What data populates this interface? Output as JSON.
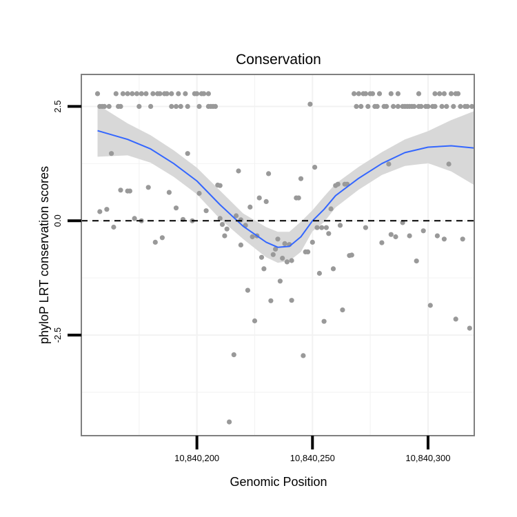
{
  "chart_data": {
    "type": "scatter",
    "title": "Conservation",
    "xlabel": "Genomic Position",
    "ylabel": "phyloP LRT conservation scores",
    "xlim": [
      10840150,
      10840320
    ],
    "ylim": [
      -4.7,
      3.2
    ],
    "x_ticks": [
      {
        "value": 10840200,
        "label": "10,840,200"
      },
      {
        "value": 10840250,
        "label": "10,840,250"
      },
      {
        "value": 10840300,
        "label": "10,840,300"
      }
    ],
    "y_ticks": [
      {
        "value": 2.5,
        "label": "2.5"
      },
      {
        "value": 0.0,
        "label": "0.0"
      },
      {
        "value": -2.5,
        "label": "-2.5"
      }
    ],
    "reference_line": {
      "y": 0,
      "style": "dashed",
      "color": "#000000"
    },
    "grid": true,
    "colors": {
      "points": "#999999",
      "smooth_line": "#3366FF",
      "confidence_band": "#D6D6D6",
      "panel_border": "#7F7F7F",
      "grid": "#F2F2F2"
    },
    "points": [
      [
        10840157,
        2.78
      ],
      [
        10840158,
        0.2
      ],
      [
        10840158,
        2.5
      ],
      [
        10840159,
        2.5
      ],
      [
        10840160,
        2.5
      ],
      [
        10840161,
        0.25
      ],
      [
        10840162,
        2.5
      ],
      [
        10840163,
        1.47
      ],
      [
        10840164,
        -0.14
      ],
      [
        10840165,
        2.78
      ],
      [
        10840166,
        2.5
      ],
      [
        10840167,
        0.67
      ],
      [
        10840167,
        2.5
      ],
      [
        10840168,
        2.78
      ],
      [
        10840170,
        2.78
      ],
      [
        10840170,
        0.65
      ],
      [
        10840171,
        0.65
      ],
      [
        10840172,
        2.78
      ],
      [
        10840173,
        0.05
      ],
      [
        10840174,
        2.78
      ],
      [
        10840175,
        2.5
      ],
      [
        10840176,
        2.78
      ],
      [
        10840176,
        0
      ],
      [
        10840178,
        2.78
      ],
      [
        10840179,
        0.73
      ],
      [
        10840180,
        2.5
      ],
      [
        10840181,
        2.78
      ],
      [
        10840182,
        -0.47
      ],
      [
        10840183,
        2.78
      ],
      [
        10840184,
        2.78
      ],
      [
        10840185,
        -0.37
      ],
      [
        10840186,
        2.78
      ],
      [
        10840187,
        2.78
      ],
      [
        10840188,
        0.62
      ],
      [
        10840189,
        2.78
      ],
      [
        10840189,
        2.5
      ],
      [
        10840191,
        0.28
      ],
      [
        10840191,
        2.5
      ],
      [
        10840192,
        2.78
      ],
      [
        10840193,
        2.5
      ],
      [
        10840194,
        0.03
      ],
      [
        10840195,
        2.78
      ],
      [
        10840196,
        1.47
      ],
      [
        10840196,
        2.5
      ],
      [
        10840198,
        0
      ],
      [
        10840199,
        2.78
      ],
      [
        10840200,
        2.78
      ],
      [
        10840201,
        0.6
      ],
      [
        10840201,
        2.5
      ],
      [
        10840202,
        2.78
      ],
      [
        10840203,
        2.78
      ],
      [
        10840204,
        0.22
      ],
      [
        10840205,
        2.78
      ],
      [
        10840205,
        2.5
      ],
      [
        10840206,
        2.5
      ],
      [
        10840207,
        2.5
      ],
      [
        10840208,
        2.5
      ],
      [
        10840209,
        0.78
      ],
      [
        10840210,
        0.05
      ],
      [
        10840210,
        0.77
      ],
      [
        10840211,
        -0.08
      ],
      [
        10840212,
        -0.33
      ],
      [
        10840213,
        -0.18
      ],
      [
        10840214,
        -4.4
      ],
      [
        10840216,
        -2.93
      ],
      [
        10840217,
        0.11
      ],
      [
        10840218,
        1.09
      ],
      [
        10840219,
        -0.53
      ],
      [
        10840219,
        0.02
      ],
      [
        10840221,
        -0.1
      ],
      [
        10840222,
        -1.52
      ],
      [
        10840223,
        0.3
      ],
      [
        10840224,
        -0.35
      ],
      [
        10840225,
        -2.19
      ],
      [
        10840226,
        -0.33
      ],
      [
        10840227,
        0.5
      ],
      [
        10840228,
        -0.8
      ],
      [
        10840229,
        -1.05
      ],
      [
        10840230,
        0.42
      ],
      [
        10840231,
        1.03
      ],
      [
        10840232,
        -1.75
      ],
      [
        10840233,
        -0.74
      ],
      [
        10840234,
        -0.62
      ],
      [
        10840235,
        -0.4
      ],
      [
        10840236,
        -1.32
      ],
      [
        10840237,
        -0.82
      ],
      [
        10840238,
        -0.5
      ],
      [
        10840239,
        -0.9
      ],
      [
        10840240,
        -0.52
      ],
      [
        10840241,
        -1.74
      ],
      [
        10840241,
        -0.87
      ],
      [
        10840243,
        0.5
      ],
      [
        10840244,
        0.5
      ],
      [
        10840245,
        0.92
      ],
      [
        10840246,
        -2.95
      ],
      [
        10840247,
        -0.68
      ],
      [
        10840248,
        -0.68
      ],
      [
        10840249,
        2.55
      ],
      [
        10840250,
        -0.47
      ],
      [
        10840251,
        1.17
      ],
      [
        10840252,
        -0.15
      ],
      [
        10840253,
        -1.15
      ],
      [
        10840254,
        -0.15
      ],
      [
        10840255,
        -2.2
      ],
      [
        10840256,
        -0.15
      ],
      [
        10840257,
        -0.28
      ],
      [
        10840258,
        0.26
      ],
      [
        10840259,
        -1.05
      ],
      [
        10840260,
        0.77
      ],
      [
        10840261,
        0.8
      ],
      [
        10840262,
        -0.1
      ],
      [
        10840263,
        -1.95
      ],
      [
        10840264,
        0.8
      ],
      [
        10840265,
        0.8
      ],
      [
        10840266,
        -0.76
      ],
      [
        10840267,
        -0.75
      ],
      [
        10840268,
        2.78
      ],
      [
        10840269,
        2.5
      ],
      [
        10840270,
        2.78
      ],
      [
        10840271,
        2.5
      ],
      [
        10840272,
        2.78
      ],
      [
        10840273,
        2.78
      ],
      [
        10840273,
        -0.15
      ],
      [
        10840274,
        2.5
      ],
      [
        10840275,
        2.78
      ],
      [
        10840276,
        2.78
      ],
      [
        10840277,
        2.5
      ],
      [
        10840278,
        2.5
      ],
      [
        10840279,
        2.78
      ],
      [
        10840280,
        -0.48
      ],
      [
        10840281,
        2.5
      ],
      [
        10840282,
        2.5
      ],
      [
        10840283,
        1.24
      ],
      [
        10840284,
        2.78
      ],
      [
        10840284,
        -0.3
      ],
      [
        10840285,
        2.5
      ],
      [
        10840286,
        -0.35
      ],
      [
        10840287,
        2.78
      ],
      [
        10840287,
        2.5
      ],
      [
        10840289,
        -0.04
      ],
      [
        10840289,
        2.5
      ],
      [
        10840290,
        2.5
      ],
      [
        10840291,
        2.5
      ],
      [
        10840292,
        -0.33
      ],
      [
        10840292,
        2.5
      ],
      [
        10840293,
        2.5
      ],
      [
        10840294,
        2.5
      ],
      [
        10840295,
        -0.88
      ],
      [
        10840296,
        2.5
      ],
      [
        10840296,
        2.78
      ],
      [
        10840297,
        2.5
      ],
      [
        10840298,
        -0.22
      ],
      [
        10840299,
        2.5
      ],
      [
        10840300,
        2.5
      ],
      [
        10840301,
        -1.85
      ],
      [
        10840302,
        2.5
      ],
      [
        10840303,
        2.78
      ],
      [
        10840303,
        2.5
      ],
      [
        10840304,
        -0.33
      ],
      [
        10840305,
        2.78
      ],
      [
        10840306,
        2.5
      ],
      [
        10840307,
        -0.4
      ],
      [
        10840307,
        2.78
      ],
      [
        10840308,
        2.5
      ],
      [
        10840309,
        1.24
      ],
      [
        10840310,
        2.78
      ],
      [
        10840311,
        2.5
      ],
      [
        10840312,
        2.78
      ],
      [
        10840312,
        -2.15
      ],
      [
        10840313,
        2.78
      ],
      [
        10840314,
        2.5
      ],
      [
        10840315,
        -0.4
      ],
      [
        10840316,
        2.5
      ],
      [
        10840317,
        2.5
      ],
      [
        10840318,
        -2.35
      ],
      [
        10840319,
        2.5
      ]
    ],
    "smooth_fit": {
      "x": [
        10840157,
        10840170,
        10840180,
        10840190,
        10840200,
        10840210,
        10840220,
        10840230,
        10840235,
        10840240,
        10840245,
        10840250,
        10840255,
        10840260,
        10840270,
        10840280,
        10840290,
        10840300,
        10840310,
        10840320
      ],
      "y": [
        1.97,
        1.78,
        1.57,
        1.25,
        0.87,
        0.35,
        -0.12,
        -0.47,
        -0.58,
        -0.56,
        -0.35,
        0.0,
        0.25,
        0.55,
        0.93,
        1.25,
        1.49,
        1.61,
        1.64,
        1.59
      ],
      "lower": [
        1.4,
        1.43,
        1.27,
        0.96,
        0.58,
        0.04,
        -0.4,
        -0.8,
        -0.92,
        -0.88,
        -0.68,
        -0.23,
        -0.03,
        0.29,
        0.68,
        1.0,
        1.2,
        1.26,
        1.08,
        0.78
      ],
      "upper": [
        2.54,
        2.13,
        1.87,
        1.54,
        1.16,
        0.66,
        0.16,
        -0.14,
        -0.24,
        -0.24,
        -0.02,
        0.23,
        0.53,
        0.81,
        1.18,
        1.5,
        1.78,
        1.96,
        2.2,
        2.4
      ]
    }
  }
}
